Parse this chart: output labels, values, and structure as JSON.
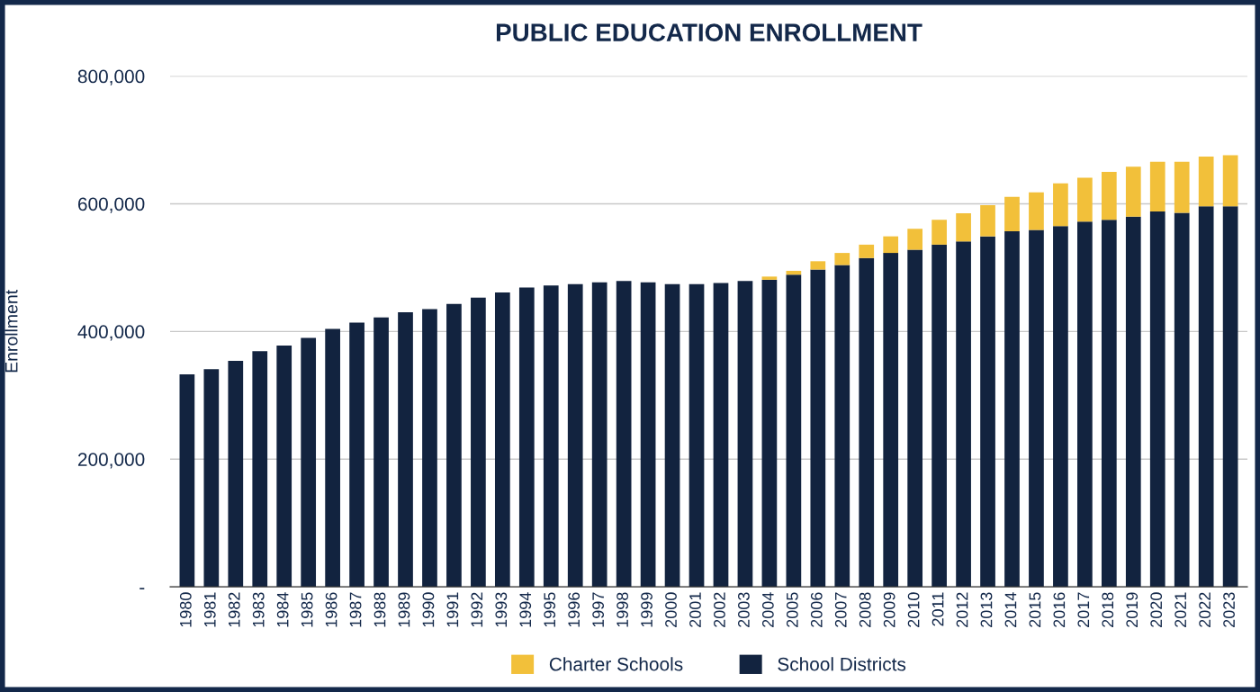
{
  "chart_data": {
    "type": "bar",
    "title": "PUBLIC EDUCATION ENROLLMENT",
    "ylabel": "Enrollment",
    "categories": [
      "1980",
      "1981",
      "1982",
      "1983",
      "1984",
      "1985",
      "1986",
      "1987",
      "1988",
      "1989",
      "1990",
      "1991",
      "1992",
      "1993",
      "1994",
      "1995",
      "1996",
      "1997",
      "1998",
      "1999",
      "2000",
      "2001",
      "2002",
      "2003",
      "2004",
      "2005",
      "2006",
      "2007",
      "2008",
      "2009",
      "2010",
      "2011",
      "2012",
      "2013",
      "2014",
      "2015",
      "2016",
      "2017",
      "2018",
      "2019",
      "2020",
      "2021",
      "2022",
      "2023"
    ],
    "stacked": true,
    "series": [
      {
        "name": "School Districts",
        "color": "#12233f",
        "values": [
          333000,
          341000,
          354000,
          369000,
          378000,
          390000,
          404000,
          414000,
          422000,
          430000,
          435000,
          443000,
          453000,
          461000,
          469000,
          472000,
          474000,
          477000,
          479000,
          477000,
          474000,
          474000,
          476000,
          479000,
          481000,
          489000,
          497000,
          504000,
          515000,
          523000,
          528000,
          536000,
          541000,
          549000,
          557000,
          559000,
          565000,
          572000,
          575000,
          580000,
          588000,
          586000,
          596000,
          596000
        ]
      },
      {
        "name": "Charter Schools",
        "color": "#f2c03a",
        "values": [
          null,
          null,
          null,
          null,
          null,
          null,
          null,
          null,
          null,
          null,
          null,
          null,
          null,
          null,
          null,
          null,
          null,
          null,
          null,
          null,
          null,
          null,
          null,
          null,
          5000,
          6000,
          13000,
          19000,
          21000,
          26000,
          33000,
          39000,
          44000,
          49000,
          54000,
          59000,
          67000,
          69000,
          75000,
          78000,
          78000,
          80000,
          78000,
          80000
        ]
      }
    ],
    "ylim": [
      0,
      800000
    ],
    "yticks": [
      {
        "value": 0,
        "label": "-"
      },
      {
        "value": 200000,
        "label": "200,000"
      },
      {
        "value": 400000,
        "label": "400,000"
      },
      {
        "value": 600000,
        "label": "600,000"
      },
      {
        "value": 800000,
        "label": "800,000"
      }
    ],
    "grid": "y",
    "legend": "bottom"
  }
}
